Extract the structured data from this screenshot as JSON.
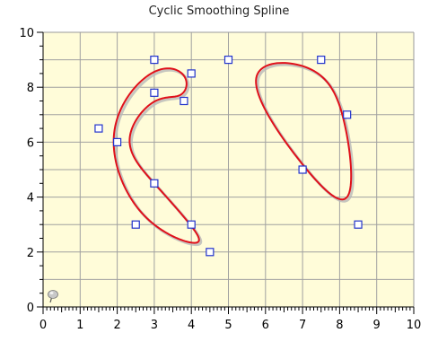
{
  "chart_data": {
    "type": "line",
    "title": "Cyclic Smoothing Spline",
    "xlabel": "",
    "ylabel": "",
    "xlim": [
      0,
      10
    ],
    "ylim": [
      0,
      10
    ],
    "x_ticks": [
      "0",
      "1",
      "2",
      "3",
      "4",
      "5",
      "6",
      "7",
      "8",
      "9",
      "10"
    ],
    "y_ticks": [
      "0",
      "2",
      "4",
      "6",
      "8",
      "10"
    ],
    "grid": true,
    "legend": "none",
    "spline_type": "cyclic smoothing",
    "series": [
      {
        "values": [
          {
            "x": 3,
            "y": 9
          },
          {
            "x": 4,
            "y": 8.5
          },
          {
            "x": 3.8,
            "y": 7.5
          },
          {
            "x": 3,
            "y": 7.8
          },
          {
            "x": 2,
            "y": 6
          },
          {
            "x": 3,
            "y": 4.5
          },
          {
            "x": 4,
            "y": 3
          },
          {
            "x": 4.5,
            "y": 2
          },
          {
            "x": 2.5,
            "y": 3
          },
          {
            "x": 1.5,
            "y": 6.5
          }
        ]
      },
      {
        "values": [
          {
            "x": 5,
            "y": 9
          },
          {
            "x": 7.5,
            "y": 9
          },
          {
            "x": 8.2,
            "y": 7
          },
          {
            "x": 8.5,
            "y": 3
          },
          {
            "x": 7,
            "y": 5
          }
        ]
      }
    ]
  },
  "colors": {
    "plot_background": "#fffcd9",
    "grid": "#a0a0a0",
    "curve": "#e0101a",
    "curve_shadow": "#b8b8b8",
    "marker_stroke": "#2233cc",
    "marker_fill": "#ffffff",
    "axis": "#000000"
  },
  "icons": {
    "corner": "pushpin-icon"
  }
}
